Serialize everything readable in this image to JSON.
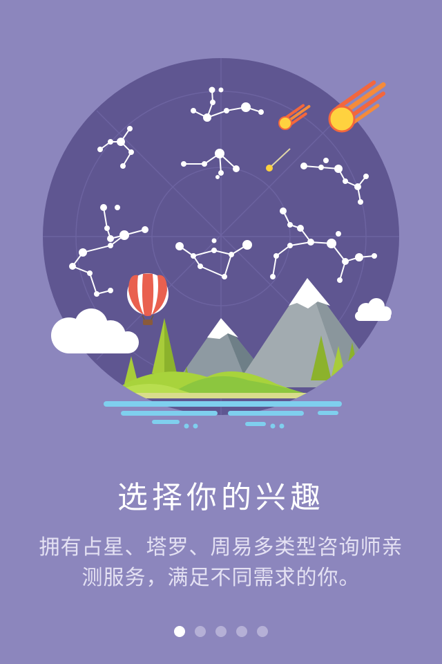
{
  "onboarding": {
    "title": "选择你的兴趣",
    "description_line1": "拥有占星、塔罗、周易多类型咨询师亲",
    "description_line2": "测服务，满足不同需求的你。"
  },
  "pager": {
    "count": 5,
    "active_index": 0
  },
  "colors": {
    "background": "#8c86bd",
    "night_sky": "#5f5691",
    "title_text": "#ffffff",
    "dot_active": "#ffffff",
    "dot_inactive": "#b5b0d6",
    "balloon_stripe": "#e9604f",
    "meteor": "#ffd23f"
  },
  "illustration": {
    "icons": [
      "constellation-icon",
      "meteor-icon",
      "hot-air-balloon-icon",
      "mountain-icon",
      "tree-icon",
      "cloud-icon",
      "water-icon"
    ]
  }
}
